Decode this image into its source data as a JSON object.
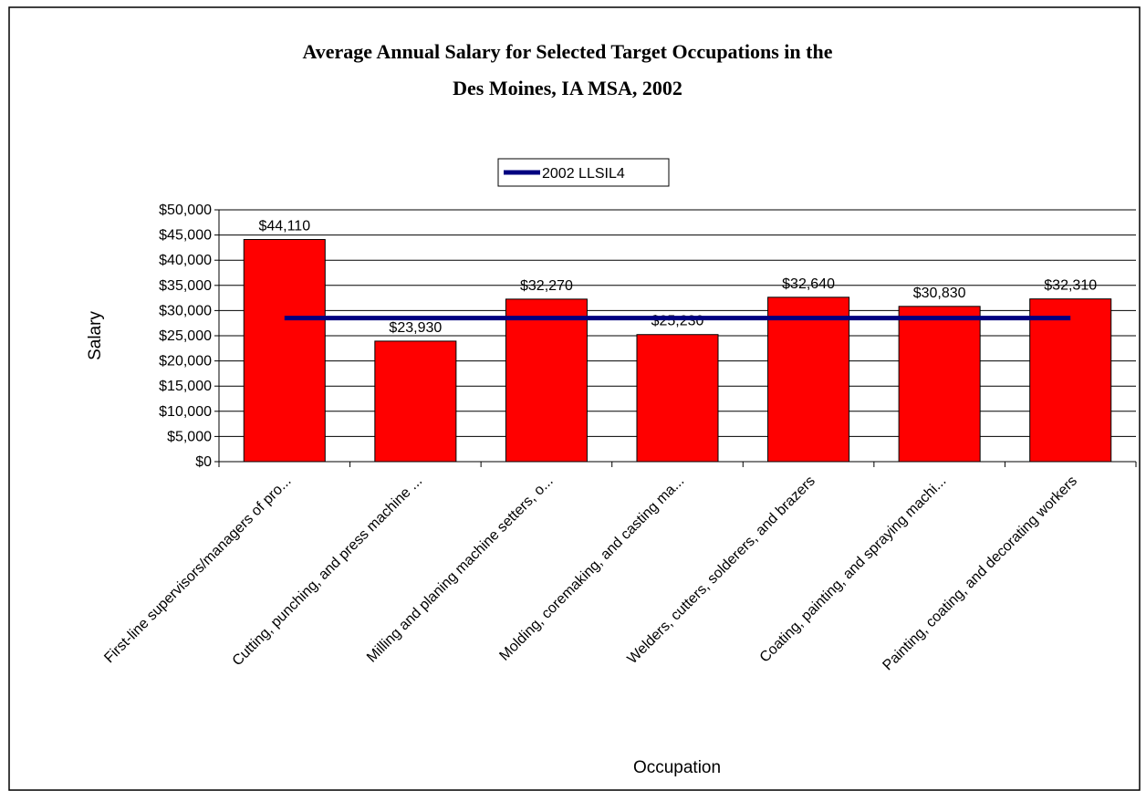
{
  "chart_data": {
    "type": "bar",
    "title": [
      "Average Annual Salary for Selected Target Occupations in the",
      "Des Moines, IA MSA, 2002"
    ],
    "x_label": "Occupation",
    "y_label": "Salary",
    "categories": [
      "First-line supervisors/managers of pro...",
      "Cutting, punching, and press machine ...",
      "Milling and planing machine setters, o...",
      "Molding, coremaking, and casting ma...",
      "Welders, cutters, solderers, and brazers",
      "Coating, painting, and spraying machi...",
      "Painting, coating, and decorating workers"
    ],
    "values": [
      44110,
      23930,
      32270,
      25230,
      32640,
      30830,
      32310
    ],
    "value_labels": [
      "$44,110",
      "$23,930",
      "$32,270",
      "$25,230",
      "$32,640",
      "$30,830",
      "$32,310"
    ],
    "color": "#ff0000",
    "series": [
      {
        "name": "2002 LLSIL4",
        "color": "#000080",
        "values": [
          28500,
          28500,
          28500,
          28500,
          28500,
          28500,
          28500
        ]
      }
    ],
    "ylim": [
      0,
      50000
    ],
    "yticks": [
      {
        "value": 0,
        "label": "$0"
      },
      {
        "value": 5000,
        "label": "$5,000"
      },
      {
        "value": 10000,
        "label": "$10,000"
      },
      {
        "value": 15000,
        "label": "$15,000"
      },
      {
        "value": 20000,
        "label": "$20,000"
      },
      {
        "value": 25000,
        "label": "$25,000"
      },
      {
        "value": 30000,
        "label": "$30,000"
      },
      {
        "value": 35000,
        "label": "$35,000"
      },
      {
        "value": 40000,
        "label": "$40,000"
      },
      {
        "value": 45000,
        "label": "$45,000"
      },
      {
        "value": 50000,
        "label": "$50,000"
      }
    ],
    "grid": true
  }
}
